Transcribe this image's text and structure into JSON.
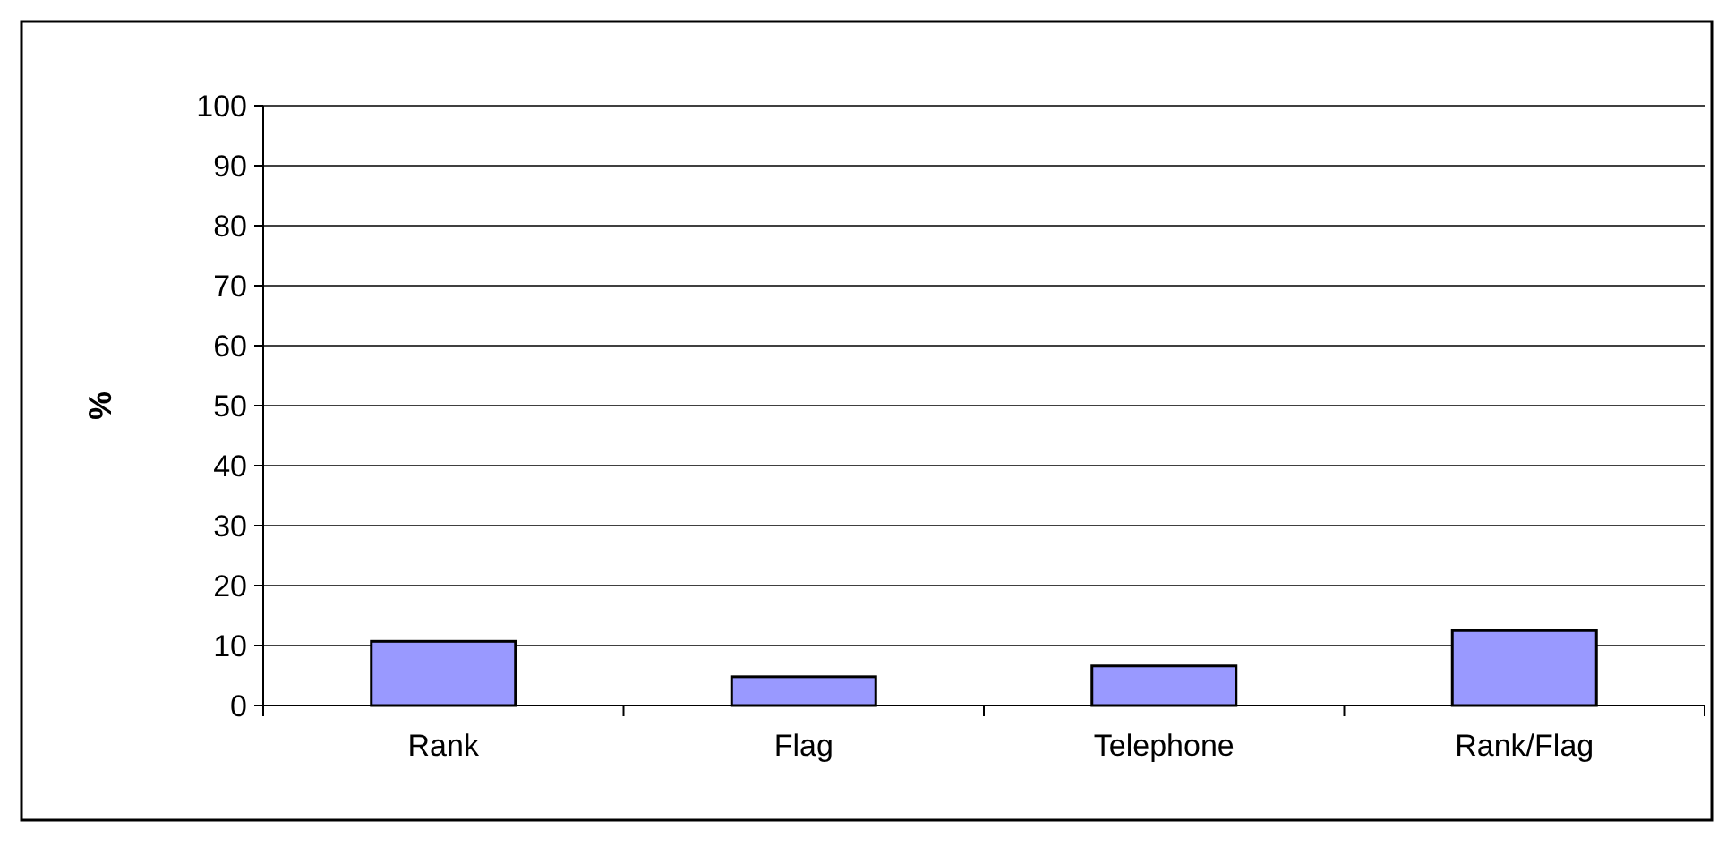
{
  "chart_data": {
    "type": "bar",
    "ylabel": "%",
    "categories": [
      "Rank",
      "Flag",
      "Telephone",
      "Rank/Flag"
    ],
    "values": [
      10.7,
      4.8,
      6.6,
      12.5
    ],
    "color": "#9999ff",
    "ylim": [
      0,
      100
    ],
    "yticks": [
      0,
      10,
      20,
      30,
      40,
      50,
      60,
      70,
      80,
      90,
      100
    ],
    "grid": "y"
  }
}
